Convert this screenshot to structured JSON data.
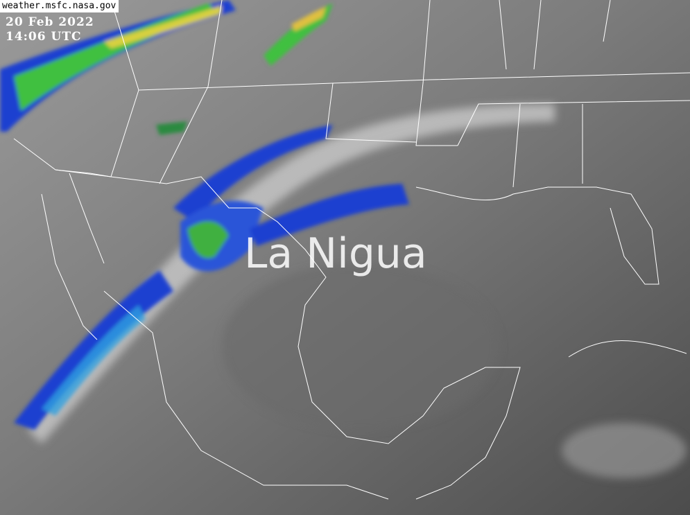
{
  "source_label": "weather.msfc.nasa.gov",
  "date": "20 Feb 2022",
  "time": "14:06 UTC",
  "watermark": "La Nigua",
  "colors": {
    "land_gray": "#7a7a7a",
    "ocean_gray": "#505050",
    "cloud_white": "#d8d8d8",
    "precip_blue": "#1a3fd0",
    "precip_green": "#3fbf3f",
    "precip_yellow": "#e0d040",
    "border": "#ffffff"
  }
}
